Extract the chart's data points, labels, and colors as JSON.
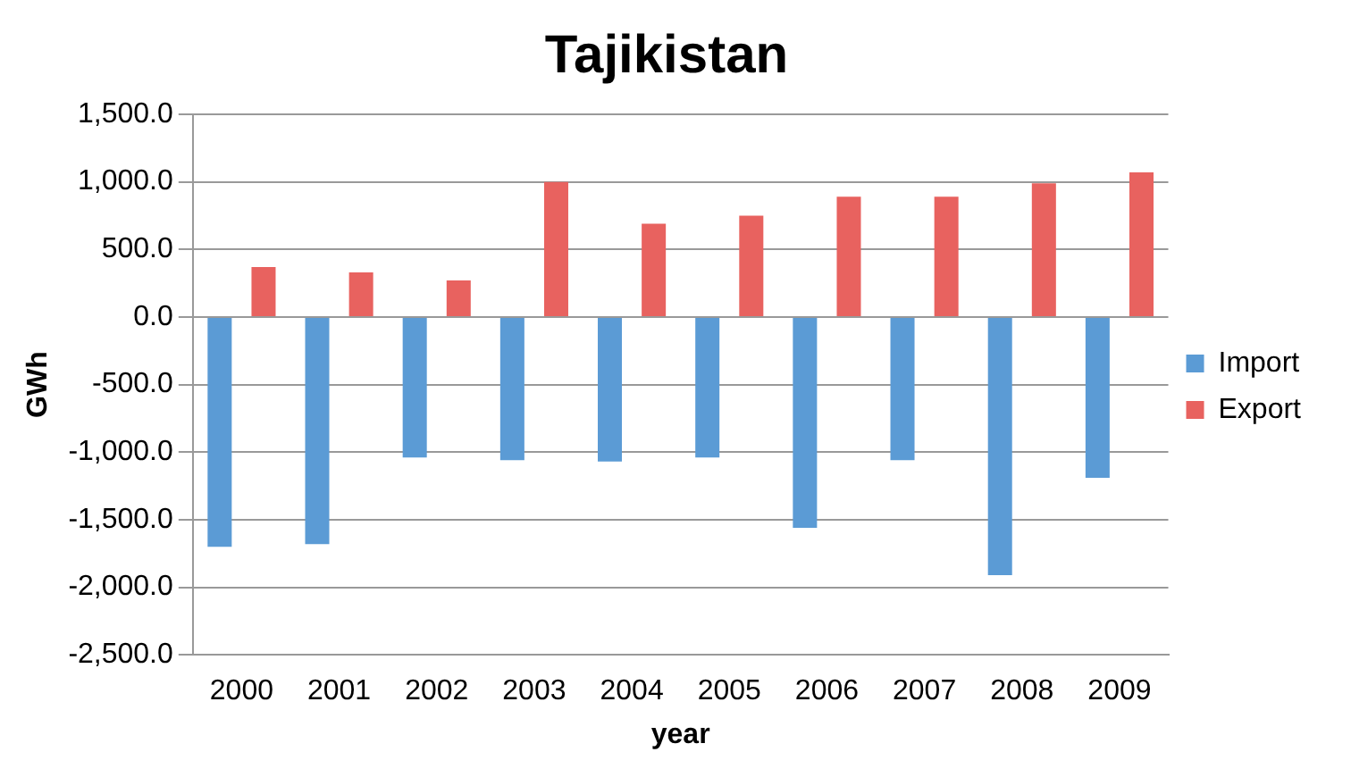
{
  "chart_data": {
    "type": "bar",
    "title": "Tajikistan",
    "xlabel": "year",
    "ylabel": "GWh",
    "categories": [
      "2000",
      "2001",
      "2002",
      "2003",
      "2004",
      "2005",
      "2006",
      "2007",
      "2008",
      "2009"
    ],
    "series": [
      {
        "name": "Import",
        "color": "#5b9bd5",
        "values": [
          -1700,
          -1680,
          -1040,
          -1060,
          -1070,
          -1040,
          -1560,
          -1060,
          -1910,
          -1190
        ]
      },
      {
        "name": "Export",
        "color": "#e8625f",
        "values": [
          370,
          330,
          270,
          1000,
          690,
          750,
          890,
          890,
          990,
          1070
        ]
      }
    ],
    "ylim": [
      -2500,
      1500
    ],
    "yticks": [
      {
        "value": -2500,
        "label": "-2,500.0"
      },
      {
        "value": -2000,
        "label": "-2,000.0"
      },
      {
        "value": -1500,
        "label": "-1,500.0"
      },
      {
        "value": -1000,
        "label": "-1,000.0"
      },
      {
        "value": -500,
        "label": "-500.0"
      },
      {
        "value": 0,
        "label": "0.0"
      },
      {
        "value": 500,
        "label": "500.0"
      },
      {
        "value": 1000,
        "label": "1,000.0"
      },
      {
        "value": 1500,
        "label": "1,500.0"
      }
    ],
    "grid": "y",
    "legend": "right"
  }
}
